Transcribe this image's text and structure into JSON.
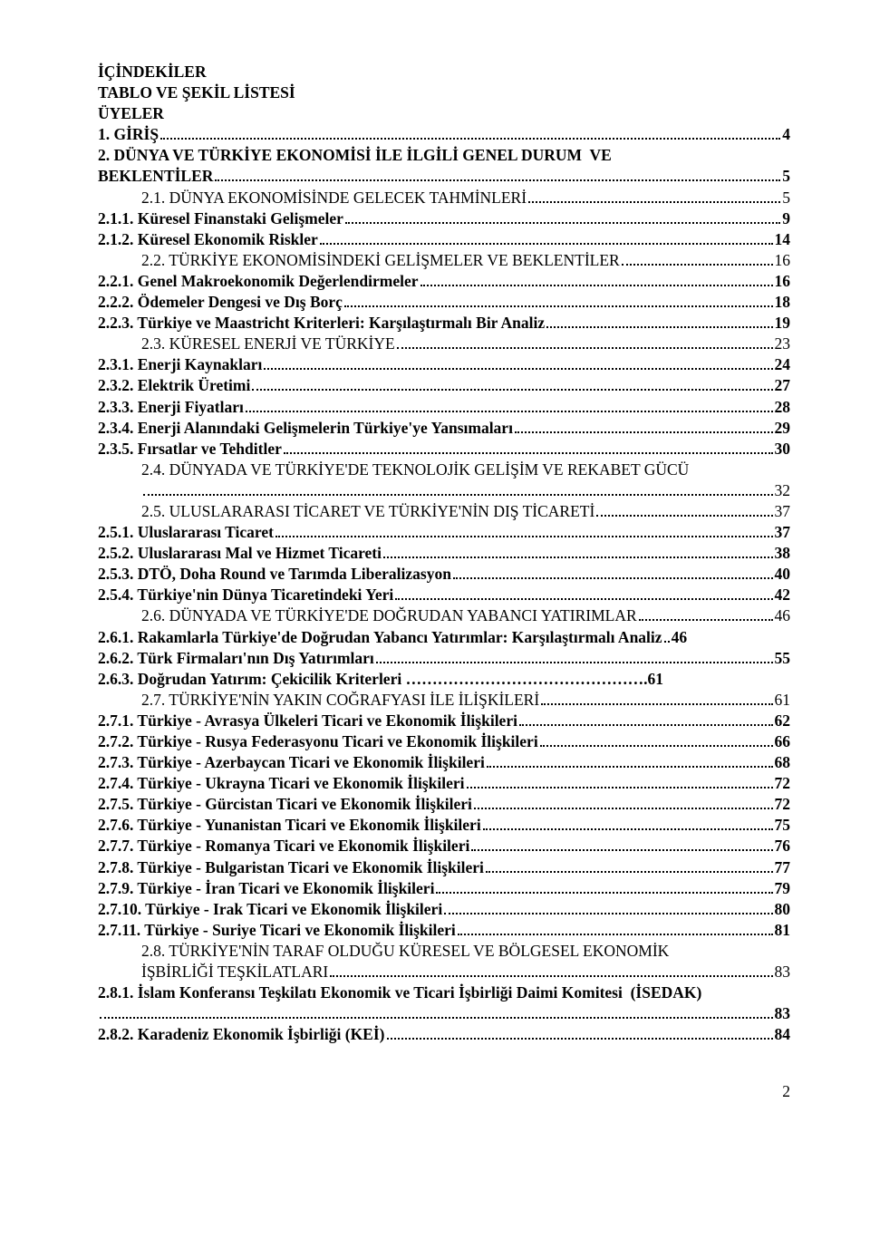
{
  "headings": {
    "h1": "İÇİNDEKİLER",
    "h2": "TABLO VE ŞEKİL LİSTESİ",
    "h3": "ÜYELER"
  },
  "toc": [
    {
      "label": "1. GİRİŞ",
      "page": "4",
      "bold": true,
      "indent": 0
    },
    {
      "label": "2. DÜNYA VE TÜRKİYE EKONOMİSİ İLE İLGİLİ GENEL DURUM  VE",
      "cont": true,
      "bold": true,
      "indent": 0
    },
    {
      "label": "BEKLENTİLER",
      "page": "5",
      "bold": true,
      "indent": 0
    },
    {
      "label": "2.1. DÜNYA EKONOMİSİNDE GELECEK TAHMİNLERİ",
      "page": "5",
      "bold": false,
      "indent": 1
    },
    {
      "label": "2.1.1. Küresel Finanstaki Gelişmeler",
      "page": "9",
      "bold": true,
      "indent": 0
    },
    {
      "label": "2.1.2. Küresel Ekonomik Riskler",
      "page": "14",
      "bold": true,
      "indent": 0
    },
    {
      "label": "2.2. TÜRKİYE EKONOMİSİNDEKİ GELİŞMELER VE BEKLENTİLER",
      "page": "16",
      "bold": false,
      "indent": 1
    },
    {
      "label": "2.2.1. Genel Makroekonomik Değerlendirmeler",
      "page": "16",
      "bold": true,
      "indent": 0
    },
    {
      "label": "2.2.2. Ödemeler Dengesi ve Dış Borç",
      "page": "18",
      "bold": true,
      "indent": 0
    },
    {
      "label": "2.2.3. Türkiye ve Maastricht Kriterleri: Karşılaştırmalı Bir Analiz",
      "page": "19",
      "bold": true,
      "indent": 0
    },
    {
      "label": "2.3. KÜRESEL ENERJİ VE TÜRKİYE",
      "page": "23",
      "bold": false,
      "indent": 1
    },
    {
      "label": "2.3.1. Enerji Kaynakları",
      "page": "24",
      "bold": true,
      "indent": 0
    },
    {
      "label": "2.3.2. Elektrik Üretimi",
      "page": "27",
      "bold": true,
      "indent": 0
    },
    {
      "label": "2.3.3. Enerji Fiyatları",
      "page": "28",
      "bold": true,
      "indent": 0
    },
    {
      "label": "2.3.4. Enerji Alanındaki Gelişmelerin Türkiye'ye Yansımaları",
      "page": "29",
      "bold": true,
      "indent": 0
    },
    {
      "label": "2.3.5. Fırsatlar ve Tehditler",
      "page": "30",
      "bold": true,
      "indent": 0
    },
    {
      "label": "2.4. DÜNYADA VE TÜRKİYE'DE TEKNOLOJİK GELİŞİM VE REKABET GÜCÜ",
      "cont": true,
      "bold": false,
      "indent": 1
    },
    {
      "label": "",
      "page": "32",
      "bold": false,
      "indent": 1
    },
    {
      "label": "2.5. ULUSLARARASI TİCARET VE TÜRKİYE'NİN DIŞ TİCARETİ",
      "page": "37",
      "bold": false,
      "indent": 1
    },
    {
      "label": "2.5.1. Uluslararası Ticaret",
      "page": "37",
      "bold": true,
      "indent": 0
    },
    {
      "label": "2.5.2. Uluslararası Mal ve Hizmet Ticareti",
      "page": "38",
      "bold": true,
      "indent": 0
    },
    {
      "label": "2.5.3. DTÖ, Doha Round ve Tarımda Liberalizasyon",
      "page": "40",
      "bold": true,
      "indent": 0
    },
    {
      "label": "2.5.4. Türkiye'nin Dünya Ticaretindeki Yeri",
      "page": "42",
      "bold": true,
      "indent": 0
    },
    {
      "label": "2.6. DÜNYADA VE TÜRKİYE'DE DOĞRUDAN YABANCI YATIRIMLAR",
      "page": "46",
      "bold": false,
      "indent": 1
    },
    {
      "label": "2.6.1. Rakamlarla Türkiye'de Doğrudan Yabancı Yatırımlar: Karşılaştırmalı Analiz",
      "page": "46",
      "bold": true,
      "indent": 0,
      "gap": "1"
    },
    {
      "label": "2.6.2. Türk Firmaları'nın Dış Yatırımları",
      "page": "55",
      "bold": true,
      "indent": 0
    },
    {
      "label": "2.6.3. Doğrudan Yatırım: Çekicilik Kriterleri ……………………………………….61",
      "plain": true,
      "bold": true,
      "indent": 0
    },
    {
      "label": "2.7. TÜRKİYE'NİN YAKIN COĞRAFYASI İLE İLİŞKİLERİ",
      "page": "61",
      "bold": false,
      "indent": 1
    },
    {
      "label": "2.7.1. Türkiye - Avrasya Ülkeleri Ticari ve Ekonomik İlişkileri",
      "page": "62",
      "bold": true,
      "indent": 0
    },
    {
      "label": "2.7.2. Türkiye - Rusya Federasyonu Ticari ve Ekonomik İlişkileri",
      "page": "66",
      "bold": true,
      "indent": 0
    },
    {
      "label": "2.7.3. Türkiye - Azerbaycan Ticari ve Ekonomik İlişkileri",
      "page": "68",
      "bold": true,
      "indent": 0
    },
    {
      "label": "2.7.4. Türkiye - Ukrayna Ticari ve Ekonomik İlişkileri",
      "page": "72",
      "bold": true,
      "indent": 0
    },
    {
      "label": "2.7.5. Türkiye - Gürcistan Ticari ve Ekonomik İlişkileri",
      "page": "72",
      "bold": true,
      "indent": 0
    },
    {
      "label": "2.7.6. Türkiye - Yunanistan Ticari ve Ekonomik İlişkileri",
      "page": "75",
      "bold": true,
      "indent": 0
    },
    {
      "label": "2.7.7. Türkiye - Romanya Ticari ve Ekonomik İlişkileri",
      "page": "76",
      "bold": true,
      "indent": 0
    },
    {
      "label": "2.7.8. Türkiye - Bulgaristan Ticari ve Ekonomik İlişkileri",
      "page": "77",
      "bold": true,
      "indent": 0
    },
    {
      "label": "2.7.9. Türkiye - İran Ticari ve Ekonomik İlişkileri",
      "page": "79",
      "bold": true,
      "indent": 0
    },
    {
      "label": "2.7.10. Türkiye - Irak Ticari ve Ekonomik İlişkileri",
      "page": "80",
      "bold": true,
      "indent": 0
    },
    {
      "label": "2.7.11. Türkiye - Suriye Ticari ve Ekonomik İlişkileri",
      "page": "81",
      "bold": true,
      "indent": 0
    },
    {
      "label": "2.8. TÜRKİYE'NİN TARAF OLDUĞU KÜRESEL VE BÖLGESEL EKONOMİK",
      "cont": true,
      "bold": false,
      "indent": 1
    },
    {
      "label": "İŞBİRLİĞİ TEŞKİLATLARI",
      "page": "83",
      "bold": false,
      "indent": 1
    },
    {
      "label": "2.8.1. İslam Konferansı Teşkilatı Ekonomik ve Ticari İşbirliği Daimi Komitesi  (İSEDAK)",
      "cont": true,
      "bold": true,
      "indent": 0
    },
    {
      "label": "",
      "page": "83",
      "bold": true,
      "indent": 0
    },
    {
      "label": "2.8.2. Karadeniz Ekonomik İşbirliği (KEİ)",
      "page": "84",
      "bold": true,
      "indent": 0
    }
  ],
  "footerPage": "2"
}
